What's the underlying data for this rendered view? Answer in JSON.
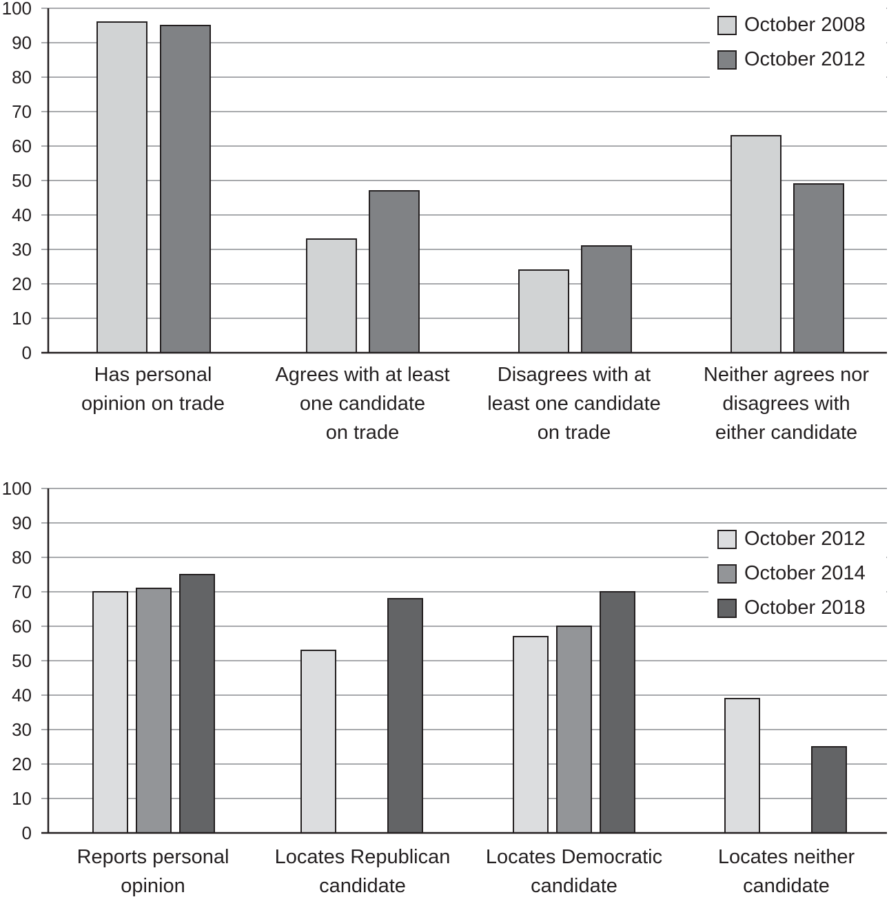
{
  "chart_data": [
    {
      "type": "bar",
      "title": "",
      "xlabel": "",
      "ylabel": "",
      "ylim": [
        0,
        100
      ],
      "yticks": [
        0,
        10,
        20,
        30,
        40,
        50,
        60,
        70,
        80,
        90,
        100
      ],
      "grid": true,
      "legend_position": "top-right",
      "categories": [
        [
          "Has personal",
          "opinion on trade"
        ],
        [
          "Agrees with at least",
          "one candidate",
          "on trade"
        ],
        [
          "Disagrees with at",
          "least one candidate",
          "on trade"
        ],
        [
          "Neither agrees nor",
          "disagrees with",
          "either candidate"
        ]
      ],
      "series": [
        {
          "name": "October 2008",
          "color": "#d1d3d4",
          "values": [
            96,
            33,
            24,
            63
          ]
        },
        {
          "name": "October 2012",
          "color": "#808285",
          "values": [
            95,
            47,
            31,
            49
          ]
        }
      ]
    },
    {
      "type": "bar",
      "title": "",
      "xlabel": "",
      "ylabel": "",
      "ylim": [
        0,
        100
      ],
      "yticks": [
        0,
        10,
        20,
        30,
        40,
        50,
        60,
        70,
        80,
        90,
        100
      ],
      "grid": true,
      "legend_position": "top-right",
      "categories": [
        [
          "Reports personal",
          "opinion"
        ],
        [
          "Locates Republican",
          "candidate"
        ],
        [
          "Locates Democratic",
          "candidate"
        ],
        [
          "Locates neither",
          "candidate"
        ]
      ],
      "series": [
        {
          "name": "October 2012",
          "color": "#dcdddf",
          "values": [
            70,
            53,
            57,
            39
          ]
        },
        {
          "name": "October 2014",
          "color": "#939598",
          "values": [
            71,
            null,
            60,
            null
          ]
        },
        {
          "name": "October 2018",
          "color": "#636466",
          "values": [
            75,
            68,
            70,
            25
          ]
        }
      ]
    }
  ]
}
